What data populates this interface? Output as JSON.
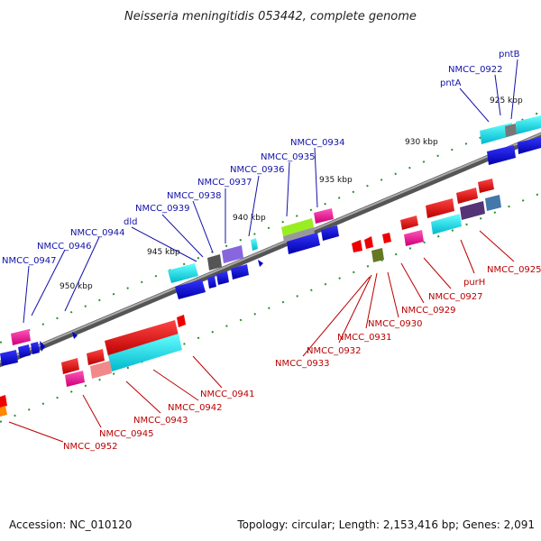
{
  "header": {
    "title": "Neisseria meningitidis 053442, complete genome"
  },
  "footer": {
    "accession": "Accession: NC_010120",
    "summary": "Topology: circular; Length: 2,153,416 bp; Genes: 2,091"
  },
  "scale_labels": [
    "925 kbp",
    "930 kbp",
    "935 kbp",
    "940 kbp",
    "945 kbp",
    "950 kbp"
  ],
  "top_labels": [
    "pntB",
    "NMCC_0922",
    "pntA",
    "NMCC_0934",
    "NMCC_0935",
    "NMCC_0936",
    "NMCC_0937",
    "NMCC_0938",
    "NMCC_0939",
    "dld",
    "NMCC_0944",
    "NMCC_0946",
    "NMCC_0947"
  ],
  "bottom_labels": [
    "NMCC_0925",
    "purH",
    "NMCC_0927",
    "NMCC_0929",
    "NMCC_0930",
    "NMCC_0931",
    "NMCC_0932",
    "NMCC_0933",
    "NMCC_0941",
    "NMCC_0942",
    "NMCC_0943",
    "NMCC_0945",
    "NMCC_0952"
  ],
  "colors": {
    "backbone": "#777777",
    "tick": "#2e8b2e",
    "label_top": "#1111aa",
    "label_bottom": "#bb0000"
  }
}
